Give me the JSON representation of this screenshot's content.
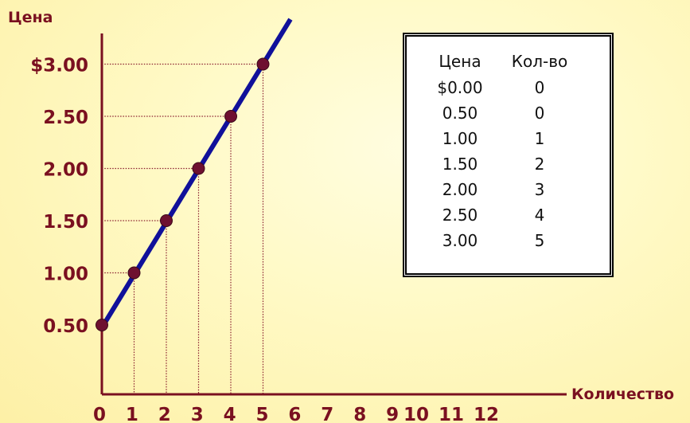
{
  "chart_data": {
    "type": "line",
    "ylabel": "Цена",
    "xlabel": "Количество",
    "x_ticks": [
      "0",
      "1",
      "2",
      "3",
      "4",
      "5",
      "6",
      "7",
      "8",
      "9",
      "10",
      "11",
      "12"
    ],
    "y_ticks": [
      "0.50",
      "1.00",
      "1.50",
      "2.00",
      "2.50",
      "$3.00"
    ],
    "xlim": [
      0,
      12
    ],
    "ylim": [
      0.5,
      3.0
    ],
    "series": [
      {
        "points": [
          [
            0,
            0.5
          ],
          [
            1,
            1.0
          ],
          [
            2,
            1.5
          ],
          [
            3,
            2.0
          ],
          [
            4,
            2.5
          ],
          [
            5,
            3.0
          ]
        ]
      }
    ],
    "line_color": "#10109a",
    "marker_color": "#6e1030",
    "axis_color": "#7a1020",
    "table": {
      "headers": [
        "Цена",
        "Кол-во"
      ],
      "rows": [
        [
          "$0.00",
          "0"
        ],
        [
          "0.50",
          "0"
        ],
        [
          "1.00",
          "1"
        ],
        [
          "1.50",
          "2"
        ],
        [
          "2.00",
          "3"
        ],
        [
          "2.50",
          "4"
        ],
        [
          "3.00",
          "5"
        ]
      ]
    }
  }
}
